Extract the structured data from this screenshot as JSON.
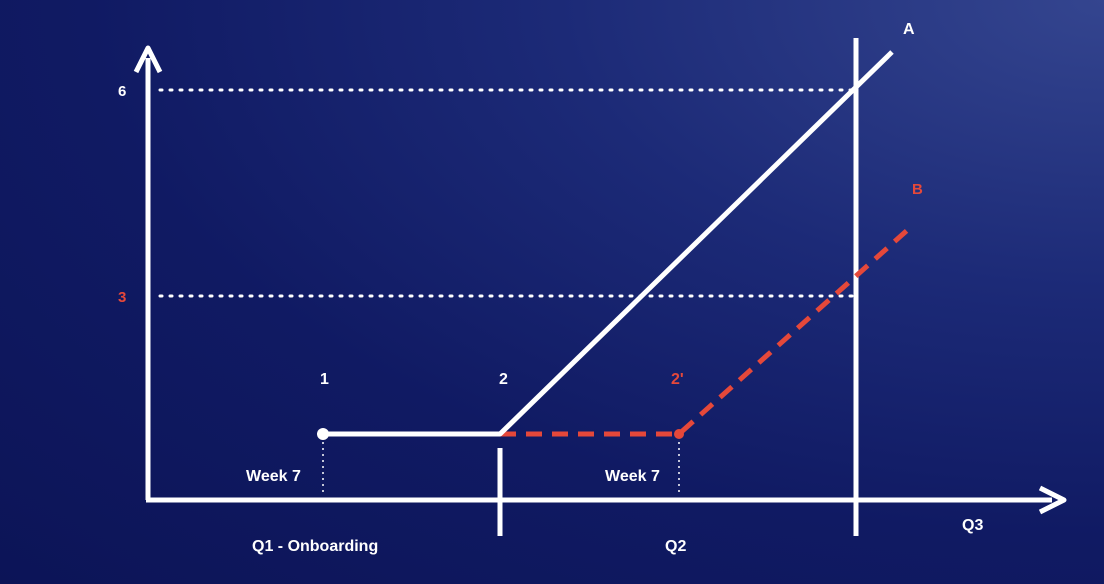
{
  "y_ticks": [
    {
      "value": 6,
      "label": "6",
      "color": "#ffffff"
    },
    {
      "value": 3,
      "label": "3",
      "color": "#e5483a"
    }
  ],
  "points": [
    {
      "label": "1",
      "color": "#ffffff"
    },
    {
      "label": "2",
      "color": "#ffffff"
    },
    {
      "label": "2'",
      "color": "#e5483a"
    }
  ],
  "week_labels": [
    "Week 7",
    "Week 7"
  ],
  "periods": [
    "Q1 - Onboarding",
    "Q2",
    "Q3"
  ],
  "series": [
    {
      "label": "A",
      "color": "#ffffff",
      "style": "solid"
    },
    {
      "label": "B",
      "color": "#e5483a",
      "style": "dashed"
    }
  ],
  "colors": {
    "background": "#111a63",
    "axis": "#ffffff",
    "accent": "#e5483a"
  }
}
